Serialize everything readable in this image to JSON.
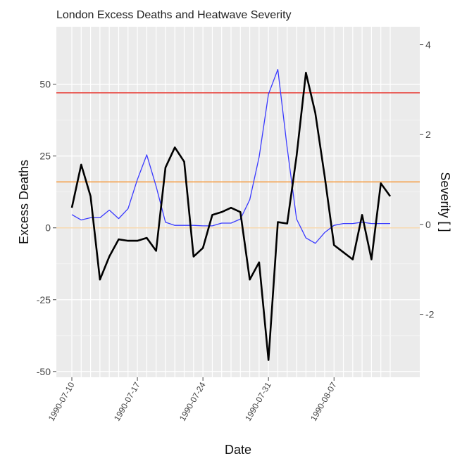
{
  "chart_data": {
    "type": "line",
    "title": "London Excess Deaths and Heatwave Severity",
    "xlabel": "Date",
    "ylabel": "Excess Deaths",
    "y2label": "Severity [ ]",
    "x_start": "1990-07-10",
    "x_ticks": [
      "1990-07-10",
      "1990-07-17",
      "1990-07-24",
      "1990-07-31",
      "1990-08-07"
    ],
    "y_ticks": [
      -50,
      -25,
      0,
      25,
      50
    ],
    "y2_ticks": [
      -2,
      0,
      2,
      4
    ],
    "ylim": [
      -52,
      70
    ],
    "y2lim": [
      -3.4,
      4.4
    ],
    "grid": true,
    "hlines": [
      {
        "y": 47,
        "color": "#e8413a"
      },
      {
        "y": 16,
        "color": "#f5a04a"
      },
      {
        "y": 0,
        "color": "#f7d9b0"
      }
    ],
    "series": [
      {
        "axis": "left",
        "color": "#000000",
        "values": [
          7,
          22,
          11,
          -18,
          -10,
          -4,
          -4.5,
          -4.5,
          -3.5,
          -8,
          21,
          28,
          23,
          -10,
          -7,
          4.5,
          5.5,
          7,
          5.5,
          -18,
          -12,
          -46,
          2,
          1.5,
          25,
          54,
          40,
          18,
          -6,
          -8.5,
          -11,
          4.5,
          -11,
          15.5,
          11
        ]
      },
      {
        "axis": "right",
        "color": "#3a3aff",
        "values": [
          0.22,
          0.1,
          0.15,
          0.15,
          0.32,
          0.13,
          0.35,
          1.0,
          1.55,
          0.85,
          0.05,
          -0.02,
          -0.02,
          -0.02,
          -0.03,
          -0.03,
          0.03,
          0.03,
          0.12,
          0.55,
          1.5,
          2.9,
          3.45,
          1.7,
          0.12,
          -0.3,
          -0.42,
          -0.18,
          -0.02,
          0.02,
          0.02,
          0.05,
          0.02,
          0.02,
          0.02
        ]
      }
    ]
  }
}
